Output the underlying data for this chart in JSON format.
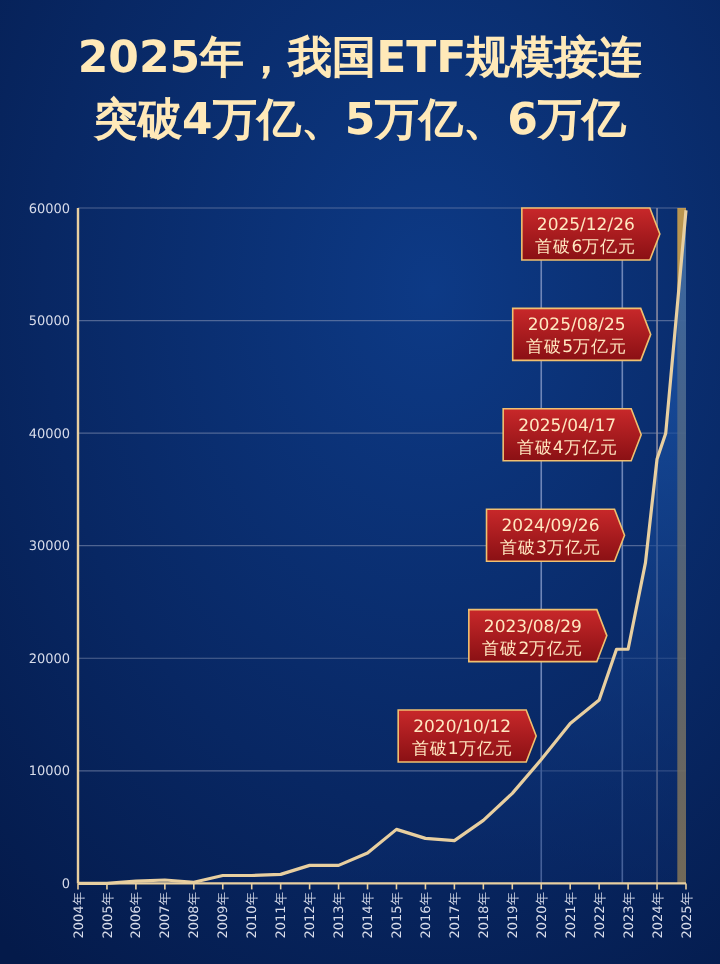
{
  "chart_data": {
    "type": "area",
    "title": "2025年，我国ETF规模接连突破4万亿、5万亿、6万亿",
    "x": [
      2004,
      2005,
      2006,
      2007,
      2008,
      2009,
      2010,
      2011,
      2012,
      2013,
      2014,
      2015,
      2016,
      2017,
      2018,
      2019,
      2020,
      2021,
      2022,
      2022.6,
      2023,
      2023.6,
      2024,
      2024.3,
      2025
    ],
    "series": [
      {
        "color": "#e8cfa0",
        "values": [
          0,
          0,
          200,
          300,
          100,
          700,
          700,
          800,
          1600,
          1600,
          2700,
          4800,
          4000,
          3800,
          5600,
          8000,
          11000,
          14200,
          16300,
          20800,
          20800,
          28500,
          37700,
          40000,
          59800
        ]
      }
    ],
    "xlim": [
      2004,
      2025
    ],
    "xticks": [
      {
        "value": 2004,
        "label": "2004年"
      },
      {
        "value": 2005,
        "label": "2005年"
      },
      {
        "value": 2006,
        "label": "2006年"
      },
      {
        "value": 2007,
        "label": "2007年"
      },
      {
        "value": 2008,
        "label": "2008年"
      },
      {
        "value": 2009,
        "label": "2009年"
      },
      {
        "value": 2010,
        "label": "2010年"
      },
      {
        "value": 2011,
        "label": "2011年"
      },
      {
        "value": 2012,
        "label": "2012年"
      },
      {
        "value": 2013,
        "label": "2013年"
      },
      {
        "value": 2014,
        "label": "2014年"
      },
      {
        "value": 2015,
        "label": "2015年"
      },
      {
        "value": 2016,
        "label": "2016年"
      },
      {
        "value": 2017,
        "label": "2017年"
      },
      {
        "value": 2018,
        "label": "2018年"
      },
      {
        "value": 2019,
        "label": "2019年"
      },
      {
        "value": 2020,
        "label": "2020年"
      },
      {
        "value": 2021,
        "label": "2021年"
      },
      {
        "value": 2022,
        "label": "2022年"
      },
      {
        "value": 2023,
        "label": "2023年"
      },
      {
        "value": 2024,
        "label": "2024年"
      },
      {
        "value": 2025,
        "label": "2025年"
      }
    ],
    "ylim": [
      0,
      60000
    ],
    "yticks": [
      0,
      10000,
      20000,
      30000,
      40000,
      50000,
      60000
    ],
    "grid": "y",
    "ref_lines": [
      {
        "axis": "x",
        "value": 2020,
        "color": "#6f86b8"
      },
      {
        "axis": "x",
        "value": 2022.8,
        "color": "#6f86b8"
      },
      {
        "axis": "x",
        "value": 2024,
        "color": "#8a8aa0"
      }
    ],
    "bands": [
      {
        "axis": "x",
        "from": 2024.7,
        "to": 2025,
        "color": "#d9a84a"
      }
    ],
    "annotations": [
      "2020/10/12\n首破1万亿元",
      "2023/08/29\n首破2万亿元",
      "2024/09/26\n首破3万亿元",
      "2025/04/17\n首破4万亿元",
      "2025/08/25\n首破5万亿元",
      "2025/12/26\n首破6万亿元"
    ]
  }
}
